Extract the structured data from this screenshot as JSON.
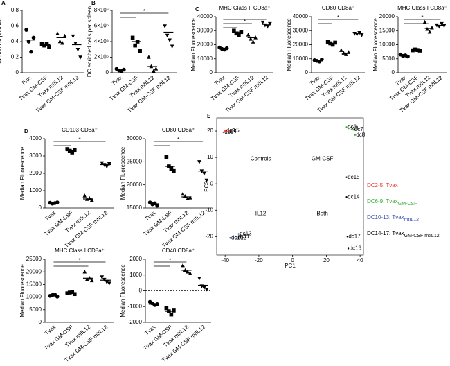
{
  "chart_data": [
    {
      "type": "dot",
      "panel": "A",
      "y_label": "fraction DiI positive",
      "categories": [
        "Tvax",
        "Tvax GM-CSF",
        "Tvax mtIL12",
        "Tvax GM-CSF mtIL12"
      ],
      "markers": [
        "circle",
        "square",
        "triangle",
        "triangle-down"
      ],
      "points": [
        [
          0.55,
          0.4,
          0.27,
          0.45
        ],
        [
          0.37,
          0.35,
          0.37,
          0.33
        ],
        [
          0.5,
          0.4,
          0.38,
          0.47
        ],
        [
          0.47,
          0.38,
          0.3,
          0.2
        ]
      ],
      "means": [
        0.42,
        0.36,
        0.45,
        0.36
      ],
      "ylim": [
        0,
        0.8
      ],
      "yticks": [
        0,
        {
          "value": 0.2,
          "label": "0.2"
        },
        {
          "value": 0.4,
          "label": "0.4"
        },
        {
          "value": 0.6,
          "label": "0.6"
        },
        {
          "value": 0.8,
          "label": "0.8"
        }
      ]
    },
    {
      "type": "dot",
      "panel": "B",
      "y_label": "DC enriched cells per spleen",
      "categories": [
        "Tvax",
        "Tvax GM-CSF",
        "Tvax mtIL12",
        "Tvax GM-CSF mtIL12"
      ],
      "markers": [
        "circle",
        "square",
        "triangle",
        "triangle-down"
      ],
      "points": [
        [
          500000,
          300000,
          200000,
          400000
        ],
        [
          4500000,
          3500000,
          4000000,
          2800000
        ],
        [
          2000000,
          800000,
          200000,
          500000
        ],
        [
          6000000,
          4800000,
          4200000,
          3400000
        ]
      ],
      "means": [
        350000,
        4000000,
        800000,
        5200000
      ],
      "ylim": [
        0,
        8000000
      ],
      "yticks": [
        0,
        {
          "value": 2000000,
          "label": "2×10⁶"
        },
        {
          "value": 4000000,
          "label": "4×10⁶"
        },
        {
          "value": 6000000,
          "label": "6×10⁶"
        },
        {
          "value": 8000000,
          "label": "8×10⁶"
        }
      ],
      "significance": {
        "label": "*",
        "to": [
          1,
          3
        ]
      }
    },
    {
      "type": "dot",
      "panel": "C",
      "title": "MHC Class II CD8a⁻",
      "y_label": "Median Fluorescence",
      "categories": [
        "Tvax",
        "Tvax GM-CSF",
        "Tvax mtIL12",
        "Tvax GM-CSF mtIL12"
      ],
      "markers": [
        "circle",
        "square",
        "triangle",
        "triangle-down"
      ],
      "points": [
        [
          18000,
          17000,
          16500,
          17500
        ],
        [
          30000,
          28000,
          27000,
          29000
        ],
        [
          27000,
          24000,
          22000,
          25000
        ],
        [
          36000,
          34000,
          33000,
          35000
        ]
      ],
      "means": [
        17000,
        29000,
        25000,
        34500
      ],
      "ylim": [
        0,
        40000
      ],
      "yticks": [
        0,
        10000,
        20000,
        30000,
        40000
      ],
      "significance": {
        "label": "*",
        "to": [
          1,
          2,
          3
        ]
      }
    },
    {
      "type": "dot",
      "title": "CD80 CD8a⁻",
      "y_label": "Median Fluorescence",
      "categories": [
        "Tvax",
        "Tvax GM-CSF",
        "Tvax mtIL12",
        "Tvax GM-CSF mtIL12"
      ],
      "markers": [
        "circle",
        "square",
        "triangle",
        "triangle-down"
      ],
      "points": [
        [
          9000,
          8500,
          8000,
          9500
        ],
        [
          22000,
          21000,
          20000,
          21500
        ],
        [
          16000,
          14000,
          13000,
          14500
        ],
        [
          28000,
          27500,
          28500,
          27000
        ]
      ],
      "means": [
        9000,
        21000,
        14000,
        28000
      ],
      "ylim": [
        0,
        40000
      ],
      "yticks": [
        0,
        10000,
        20000,
        30000,
        40000
      ],
      "significance": {
        "label": "*",
        "to": [
          1,
          3
        ]
      }
    },
    {
      "type": "dot",
      "title": "MHC Class I CD8a⁻",
      "y_label": "Median Fluorescence",
      "categories": [
        "Tvax",
        "Tvax GM-CSF",
        "Tvax mtIL12",
        "Tvax GM-CSF mtIL12"
      ],
      "markers": [
        "circle",
        "square",
        "triangle",
        "triangle-down"
      ],
      "points": [
        [
          6500,
          6000,
          6200,
          5800
        ],
        [
          8000,
          8300,
          8100,
          7900
        ],
        [
          18000,
          15500,
          14500,
          16000
        ],
        [
          17000,
          16500,
          17500,
          16800
        ]
      ],
      "means": [
        6300,
        8100,
        15800,
        16900
      ],
      "ylim": [
        0,
        20000
      ],
      "yticks": [
        0,
        5000,
        10000,
        15000,
        20000
      ],
      "significance": {
        "label": "*",
        "to": [
          2,
          3
        ]
      }
    },
    {
      "type": "dot",
      "panel": "D",
      "title": "CD103 CD8a⁺",
      "y_label": "Median Fluorescence",
      "categories": [
        "Tvax",
        "Tvax GM-CSF",
        "Tvax mtIL12",
        "Tvax GM-CSF mtIL12"
      ],
      "markers": [
        "circle",
        "square",
        "triangle",
        "triangle-down"
      ],
      "points": [
        [
          300,
          250,
          280,
          320
        ],
        [
          3400,
          3300,
          3200,
          3350
        ],
        [
          700,
          500,
          550,
          450
        ],
        [
          2600,
          2500,
          2400,
          2550
        ]
      ],
      "means": [
        290,
        3300,
        520,
        2500
      ],
      "ylim": [
        0,
        4000
      ],
      "yticks": [
        0,
        1000,
        2000,
        3000,
        4000
      ],
      "significance": {
        "label": "*",
        "to": [
          1,
          3
        ]
      }
    },
    {
      "type": "dot",
      "title": "CD80 CD8a⁺",
      "y_label": "Median Fluorescence",
      "categories": [
        "Tvax",
        "Tvax GM-CSF",
        "Tvax mtIL12",
        "Tvax GM-CSF mtIL12"
      ],
      "markers": [
        "circle",
        "square",
        "triangle",
        "triangle-down"
      ],
      "points": [
        [
          16200,
          15800,
          16000,
          15500
        ],
        [
          26000,
          24000,
          23500,
          23000
        ],
        [
          18000,
          17500,
          17000,
          17200
        ],
        [
          25000,
          23000,
          22500,
          21000
        ]
      ],
      "means": [
        15900,
        24000,
        17400,
        23000
      ],
      "ylim": [
        15000,
        30000
      ],
      "yticks": [
        15000,
        20000,
        25000,
        30000
      ],
      "significance": {
        "label": "*",
        "to": [
          1,
          3
        ]
      }
    },
    {
      "type": "dot",
      "title": "MHC Class I CD8a⁺",
      "y_label": "Median Fluorescence",
      "categories": [
        "Tvax",
        "Tvax GM-CSF",
        "Tvax mtIL12",
        "Tvax GM-CSF mtIL12"
      ],
      "markers": [
        "circle",
        "square",
        "triangle",
        "triangle-down"
      ],
      "points": [
        [
          10500,
          10800,
          11000,
          10200
        ],
        [
          11500,
          11800,
          12000,
          11200
        ],
        [
          20000,
          17000,
          17500,
          16500
        ],
        [
          18000,
          17000,
          16000,
          15500
        ]
      ],
      "means": [
        10700,
        11600,
        17500,
        16700
      ],
      "ylim": [
        0,
        25000
      ],
      "yticks": [
        0,
        5000,
        10000,
        15000,
        20000,
        25000
      ],
      "significance": {
        "label": "*",
        "to": [
          2,
          3
        ]
      }
    },
    {
      "type": "dot",
      "title": "CD40 CD8a⁺",
      "y_label": "Median Fluorescence",
      "categories": [
        "Tvax",
        "Tvax GM-CSF",
        "Tvax mtIL12",
        "Tvax GM-CSF mtIL12"
      ],
      "markers": [
        "circle",
        "square",
        "triangle",
        "triangle-down"
      ],
      "points": [
        [
          -700,
          -800,
          -900,
          -850
        ],
        [
          -1100,
          -1300,
          -1500,
          -1250
        ],
        [
          1600,
          1300,
          1200,
          1100
        ],
        [
          800,
          300,
          200,
          100
        ]
      ],
      "means": [
        -850,
        -1300,
        1300,
        350
      ],
      "ylim": [
        -2000,
        2000
      ],
      "yticks": [
        -2000,
        -1000,
        0,
        1000,
        2000
      ],
      "zero_line": true,
      "significance": {
        "label": "*",
        "to": [
          1,
          2
        ]
      }
    },
    {
      "type": "scatter",
      "panel": "E",
      "x_label": "PC1",
      "y_label": "PC2",
      "xlim": [
        -45,
        42
      ],
      "ylim": [
        -27,
        25
      ],
      "xticks": [
        -40,
        -20,
        0,
        20,
        40
      ],
      "yticks": [
        -20,
        -10,
        0,
        10,
        20
      ],
      "annotations": [
        "Controls",
        "GM-CSF",
        "IL12",
        "Both"
      ],
      "series": [
        {
          "name": "DC2-5: Tvax",
          "color": "#e8392a",
          "x": [
            -41,
            -40,
            -39,
            -37.5
          ],
          "y": [
            19.5,
            20,
            19.8,
            20.2
          ],
          "labels": [
            "dc2",
            "dc3",
            "dc4",
            "dc5"
          ]
        },
        {
          "name": "DC6-9: Tvax",
          "name_sub": "GM-CSF",
          "color": "#3aa935",
          "x": [
            32,
            33,
            36,
            37
          ],
          "y": [
            21.5,
            21,
            20.5,
            18.5
          ],
          "labels": [
            "dc6",
            "dc9",
            "dc7",
            "dc8"
          ]
        },
        {
          "name": "DC10-13: Tvax",
          "name_sub": "mtIL12",
          "color": "#3c4fb0",
          "x": [
            -37,
            -35,
            -33,
            -32
          ],
          "y": [
            -20.5,
            -20.5,
            -20,
            -19
          ],
          "labels": [
            "dc10",
            "dc12",
            "dc11",
            "dc13"
          ]
        },
        {
          "name": "DC14-17: Tvax",
          "name_sub": "GM-CSF mtIL12",
          "color": "#000000",
          "x": [
            32,
            32,
            33,
            32.5
          ],
          "y": [
            -5,
            2.5,
            -24.5,
            -20
          ],
          "labels": [
            "dc14",
            "dc15",
            "dc16",
            "dc17"
          ]
        }
      ]
    }
  ]
}
